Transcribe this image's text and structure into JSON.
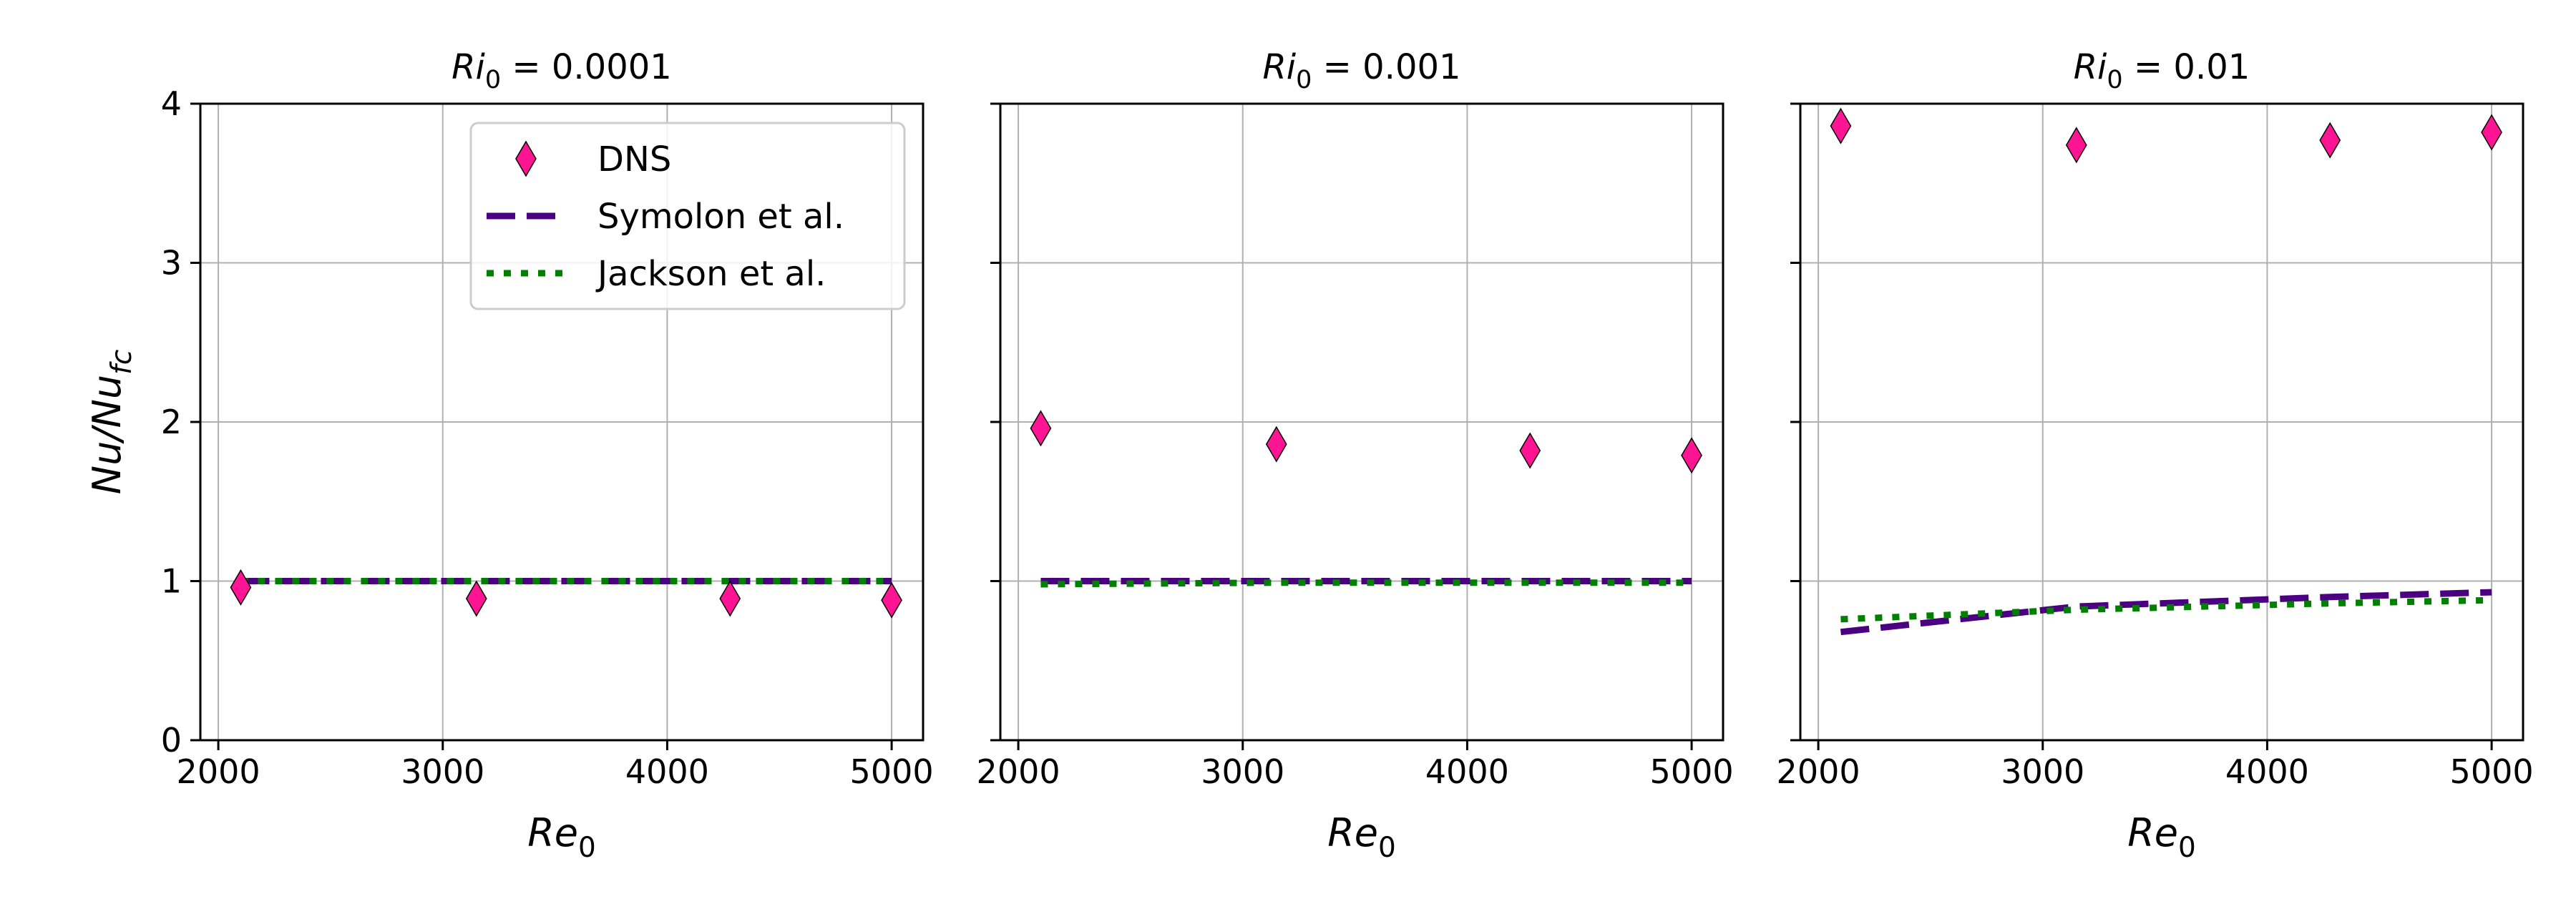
{
  "colors": {
    "dns": "#ff1493",
    "symolon": "#4b0082",
    "jackson": "#008000",
    "grid": "#b0b0b0",
    "axes": "#000000"
  },
  "legend": {
    "entries": [
      "DNS",
      "Symolon et al.",
      "Jackson et al."
    ],
    "placement": "top-right (first panel)"
  },
  "chart_data": [
    {
      "type": "scatter",
      "title": "Ri0 = 0.0001",
      "xlabel": "Re0",
      "ylabel": "Nu/Nufc",
      "xlim": [
        1920,
        5140
      ],
      "ylim": [
        0,
        4
      ],
      "xticks": [
        2000,
        3000,
        4000,
        5000
      ],
      "yticks": [
        0,
        1,
        2,
        3,
        4
      ],
      "grid": true,
      "series": [
        {
          "name": "DNS",
          "kind": "scatter",
          "marker": "diamond",
          "x": [
            2100,
            3150,
            4280,
            5000
          ],
          "y": [
            0.96,
            0.89,
            0.89,
            0.88
          ]
        },
        {
          "name": "Symolon et al.",
          "kind": "line",
          "dash": "dashed",
          "x": [
            2100,
            3150,
            4280,
            5000
          ],
          "y": [
            1.0,
            1.0,
            1.0,
            1.0
          ]
        },
        {
          "name": "Jackson et al.",
          "kind": "line",
          "dash": "dotted",
          "x": [
            2100,
            3150,
            4280,
            5000
          ],
          "y": [
            1.0,
            1.0,
            1.0,
            1.0
          ]
        }
      ]
    },
    {
      "type": "scatter",
      "title": "Ri0 = 0.001",
      "xlabel": "Re0",
      "ylabel": "",
      "xlim": [
        1920,
        5140
      ],
      "ylim": [
        0,
        4
      ],
      "xticks": [
        2000,
        3000,
        4000,
        5000
      ],
      "yticks": [
        0,
        1,
        2,
        3,
        4
      ],
      "grid": true,
      "series": [
        {
          "name": "DNS",
          "kind": "scatter",
          "marker": "diamond",
          "x": [
            2100,
            3150,
            4280,
            5000
          ],
          "y": [
            1.96,
            1.86,
            1.82,
            1.79
          ]
        },
        {
          "name": "Symolon et al.",
          "kind": "line",
          "dash": "dashed",
          "x": [
            2100,
            3150,
            4280,
            5000
          ],
          "y": [
            1.0,
            1.0,
            1.0,
            1.0
          ]
        },
        {
          "name": "Jackson et al.",
          "kind": "line",
          "dash": "dotted",
          "x": [
            2100,
            3150,
            4280,
            5000
          ],
          "y": [
            0.98,
            0.99,
            0.99,
            0.99
          ]
        }
      ]
    },
    {
      "type": "scatter",
      "title": "Ri0 = 0.01",
      "xlabel": "Re0",
      "ylabel": "",
      "xlim": [
        1920,
        5140
      ],
      "ylim": [
        0,
        4
      ],
      "xticks": [
        2000,
        3000,
        4000,
        5000
      ],
      "yticks": [
        0,
        1,
        2,
        3,
        4
      ],
      "grid": true,
      "series": [
        {
          "name": "DNS",
          "kind": "scatter",
          "marker": "diamond",
          "x": [
            2100,
            3150,
            4280,
            5000
          ],
          "y": [
            3.86,
            3.74,
            3.77,
            3.82
          ]
        },
        {
          "name": "Symolon et al.",
          "kind": "line",
          "dash": "dashed",
          "x": [
            2100,
            3150,
            4280,
            5000
          ],
          "y": [
            0.68,
            0.84,
            0.9,
            0.93
          ]
        },
        {
          "name": "Jackson et al.",
          "kind": "line",
          "dash": "dotted",
          "x": [
            2100,
            3150,
            4280,
            5000
          ],
          "y": [
            0.76,
            0.82,
            0.86,
            0.88
          ]
        }
      ]
    }
  ]
}
